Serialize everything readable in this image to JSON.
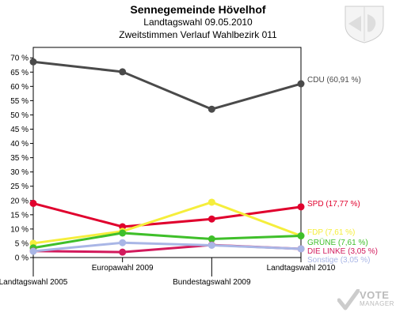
{
  "header": {
    "title": "Sennegemeinde Hövelhof",
    "subtitle1": "Landtagswahl 09.05.2010",
    "subtitle2": "Zweitstimmen Verlauf Wahlbezirk 011"
  },
  "brand": {
    "line1": "VOTE",
    "line2": "MANAGER"
  },
  "chart_data": {
    "type": "line",
    "title": "Sennegemeinde Hövelhof",
    "subtitle": "Landtagswahl 09.05.2010 / Zweitstimmen Verlauf Wahlbezirk 011",
    "categories": [
      "Landtagswahl 2005",
      "Europawahl 2009",
      "Bundestagswahl 2009",
      "Landtagswahl 2010"
    ],
    "ylim": [
      0,
      72
    ],
    "yticks": [
      0,
      5,
      10,
      15,
      20,
      25,
      30,
      35,
      40,
      45,
      50,
      55,
      60,
      65,
      70
    ],
    "ytick_labels": [
      "0 %",
      "5 %",
      "10 %",
      "15 %",
      "20 %",
      "25 %",
      "30 %",
      "35 %",
      "40 %",
      "45 %",
      "50 %",
      "55 %",
      "60 %",
      "65 %",
      "70 %"
    ],
    "grid": false,
    "series": [
      {
        "name": "CDU",
        "color": "#4a4a4a",
        "values": [
          68.6,
          65.1,
          52.0,
          60.91
        ],
        "label": "CDU (60,91 %)"
      },
      {
        "name": "SPD",
        "color": "#e0002d",
        "values": [
          19.0,
          10.8,
          13.5,
          17.77
        ],
        "label": "SPD (17,77 %)"
      },
      {
        "name": "FDP",
        "color": "#f5ee3c",
        "values": [
          5.0,
          9.2,
          19.4,
          7.61
        ],
        "label": "FDP (7,61 %)"
      },
      {
        "name": "GRÜNE",
        "color": "#3fbf2a",
        "values": [
          3.4,
          8.6,
          6.5,
          7.61
        ],
        "label": "GRÜNE (7,61 %)"
      },
      {
        "name": "DIE LINKE",
        "color": "#d21a5c",
        "values": [
          2.3,
          1.9,
          4.4,
          3.05
        ],
        "label": "DIE LINKE (3,05 %)"
      },
      {
        "name": "Sonstige",
        "color": "#a9b6e6",
        "values": [
          2.2,
          5.2,
          4.3,
          3.05
        ],
        "label": "Sonstige (3,05 %)"
      }
    ]
  }
}
